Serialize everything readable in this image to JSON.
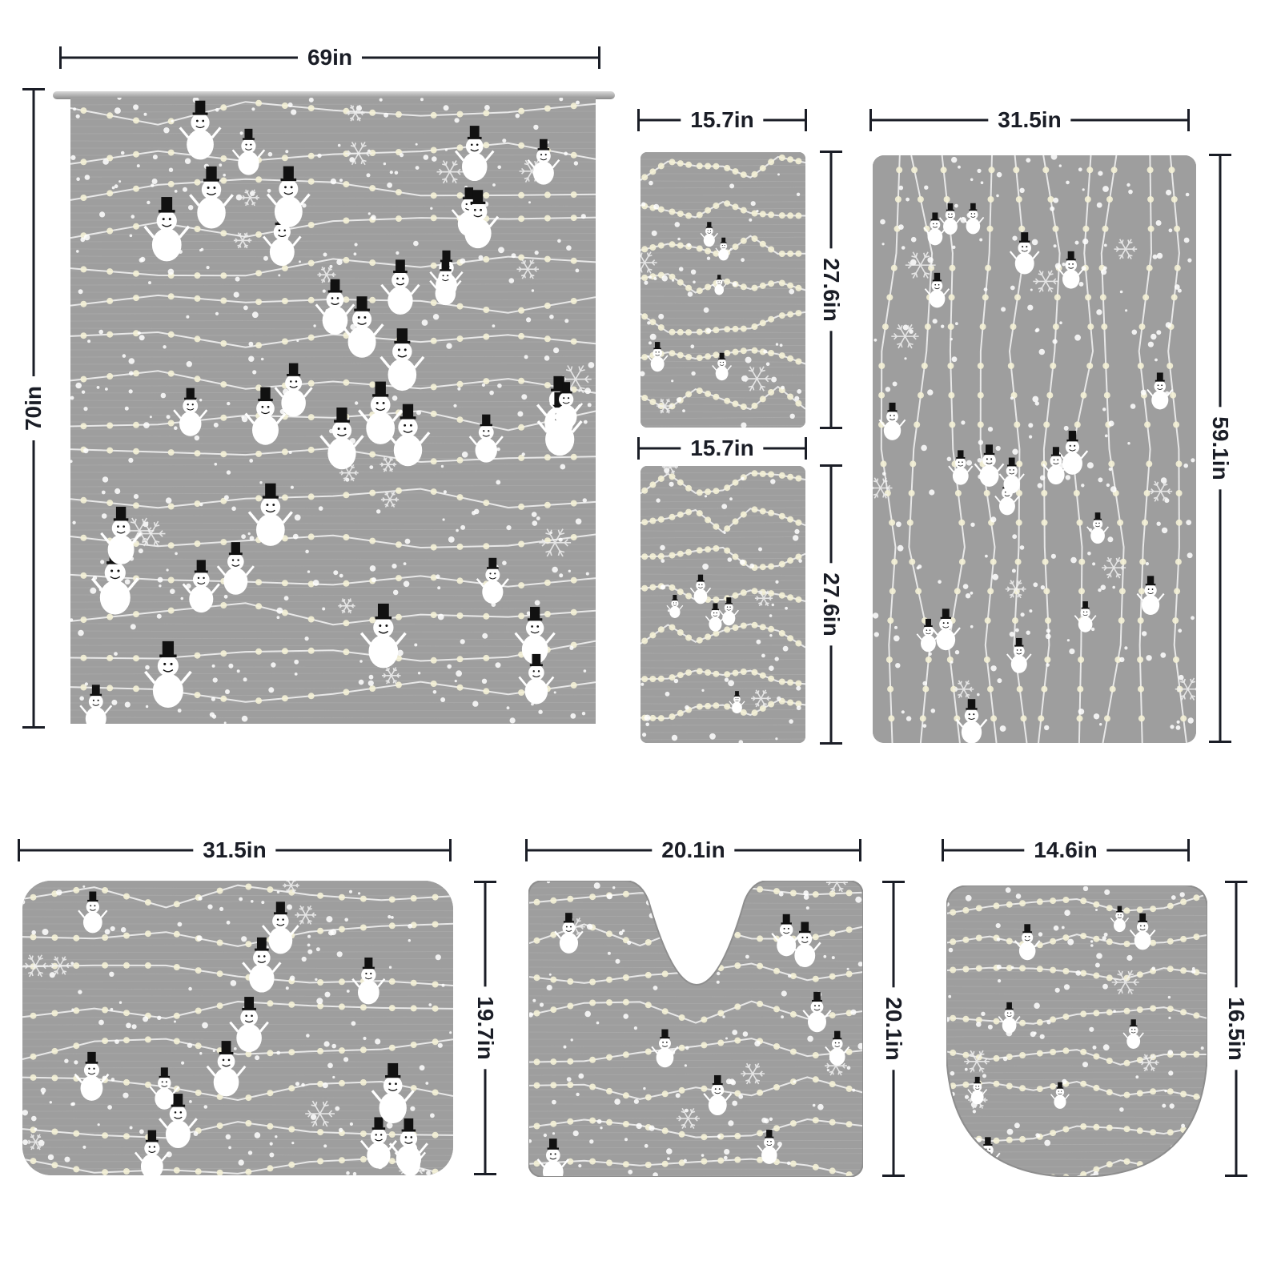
{
  "dimensions": {
    "curtain_width": "69in",
    "curtain_height": "70in",
    "towel1_width": "15.7in",
    "towel1_height": "27.6in",
    "towel2_width": "15.7in",
    "towel2_height": "27.6in",
    "runner_width": "31.5in",
    "runner_height": "59.1in",
    "bathmat_width": "31.5in",
    "bathmat_height": "19.7in",
    "contour_width": "20.1in",
    "contour_height": "20.1in",
    "lid_width": "14.6in",
    "lid_height": "16.5in"
  },
  "colors": {
    "background": "#ffffff",
    "fabric": "#9e9e9e",
    "line": "#1a1d26",
    "snowman": "#ffffff",
    "hat": "#111111",
    "light": "#f4f1d6"
  },
  "pattern": "snowman-string-lights"
}
